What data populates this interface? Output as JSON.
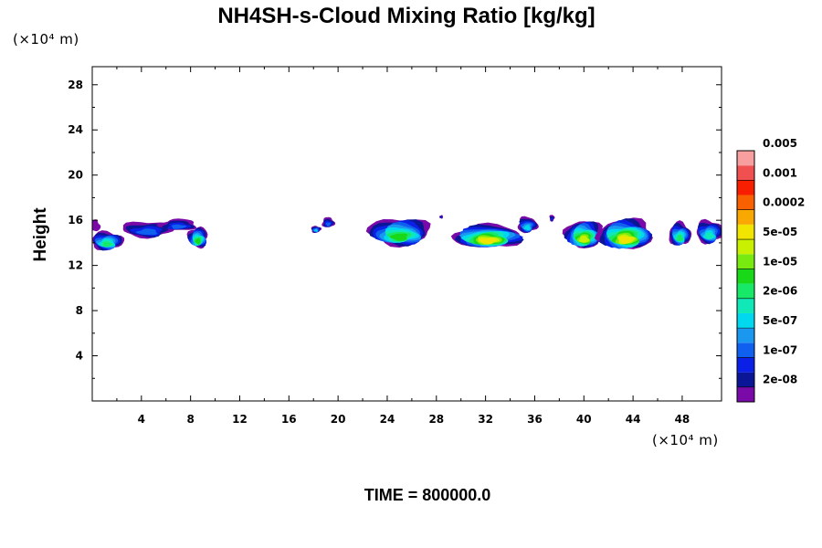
{
  "chart_data": {
    "type": "heatmap",
    "title": "NH4SH-s-Cloud Mixing Ratio [kg/kg]",
    "xlabel": "",
    "ylabel": "Height",
    "x_unit_label": "(×10⁴ m)",
    "y_unit_label": "(×10⁴ m)",
    "time_label": "TIME = 800000.0",
    "xlim": [
      0,
      51.2
    ],
    "ylim": [
      0,
      29.6
    ],
    "x_ticks": [
      4,
      8,
      12,
      16,
      20,
      24,
      28,
      32,
      36,
      40,
      44,
      48
    ],
    "y_ticks": [
      4,
      8,
      12,
      16,
      20,
      24,
      28
    ],
    "colorbar": {
      "colors": [
        "#7a0aa8",
        "#0a1696",
        "#0a20e6",
        "#1060f0",
        "#1a98f0",
        "#00d8f0",
        "#10e8b8",
        "#18e868",
        "#18d818",
        "#78ea10",
        "#c8f000",
        "#f0e400",
        "#f8a800",
        "#f86000",
        "#f81e00",
        "#f05050",
        "#f8a0a0"
      ],
      "labels": [
        "2e-08",
        "1e-07",
        "5e-07",
        "2e-06",
        "1e-05",
        "5e-05",
        "0.0002",
        "0.001",
        "0.005"
      ]
    },
    "cloud_cells": [
      {
        "x": 0.2,
        "z": 15.5,
        "w": 0.9,
        "h": 1.0,
        "level": 0
      },
      {
        "x": 1.2,
        "z": 14.2,
        "w": 2.6,
        "h": 1.6,
        "level": 7
      },
      {
        "x": 4.5,
        "z": 15.2,
        "w": 4.2,
        "h": 1.4,
        "level": 3
      },
      {
        "x": 8.6,
        "z": 14.5,
        "w": 1.6,
        "h": 1.8,
        "level": 8
      },
      {
        "x": 7.0,
        "z": 15.6,
        "w": 3.0,
        "h": 1.0,
        "level": 3
      },
      {
        "x": 19.2,
        "z": 15.8,
        "w": 1.0,
        "h": 0.9,
        "level": 3
      },
      {
        "x": 18.2,
        "z": 15.2,
        "w": 0.8,
        "h": 0.6,
        "level": 5
      },
      {
        "x": 25.0,
        "z": 15.0,
        "w": 5.0,
        "h": 2.4,
        "level": 8
      },
      {
        "x": 28.4,
        "z": 16.3,
        "w": 0.3,
        "h": 0.3,
        "level": 2
      },
      {
        "x": 32.2,
        "z": 14.6,
        "w": 5.6,
        "h": 2.0,
        "level": 11
      },
      {
        "x": 35.4,
        "z": 15.6,
        "w": 1.6,
        "h": 1.4,
        "level": 5
      },
      {
        "x": 37.4,
        "z": 16.2,
        "w": 0.4,
        "h": 0.6,
        "level": 2
      },
      {
        "x": 40.0,
        "z": 14.8,
        "w": 3.0,
        "h": 2.4,
        "level": 10
      },
      {
        "x": 43.4,
        "z": 14.8,
        "w": 4.4,
        "h": 2.6,
        "level": 11
      },
      {
        "x": 47.8,
        "z": 14.8,
        "w": 1.8,
        "h": 2.0,
        "level": 7
      },
      {
        "x": 50.2,
        "z": 15.0,
        "w": 2.2,
        "h": 2.0,
        "level": 6
      }
    ]
  }
}
